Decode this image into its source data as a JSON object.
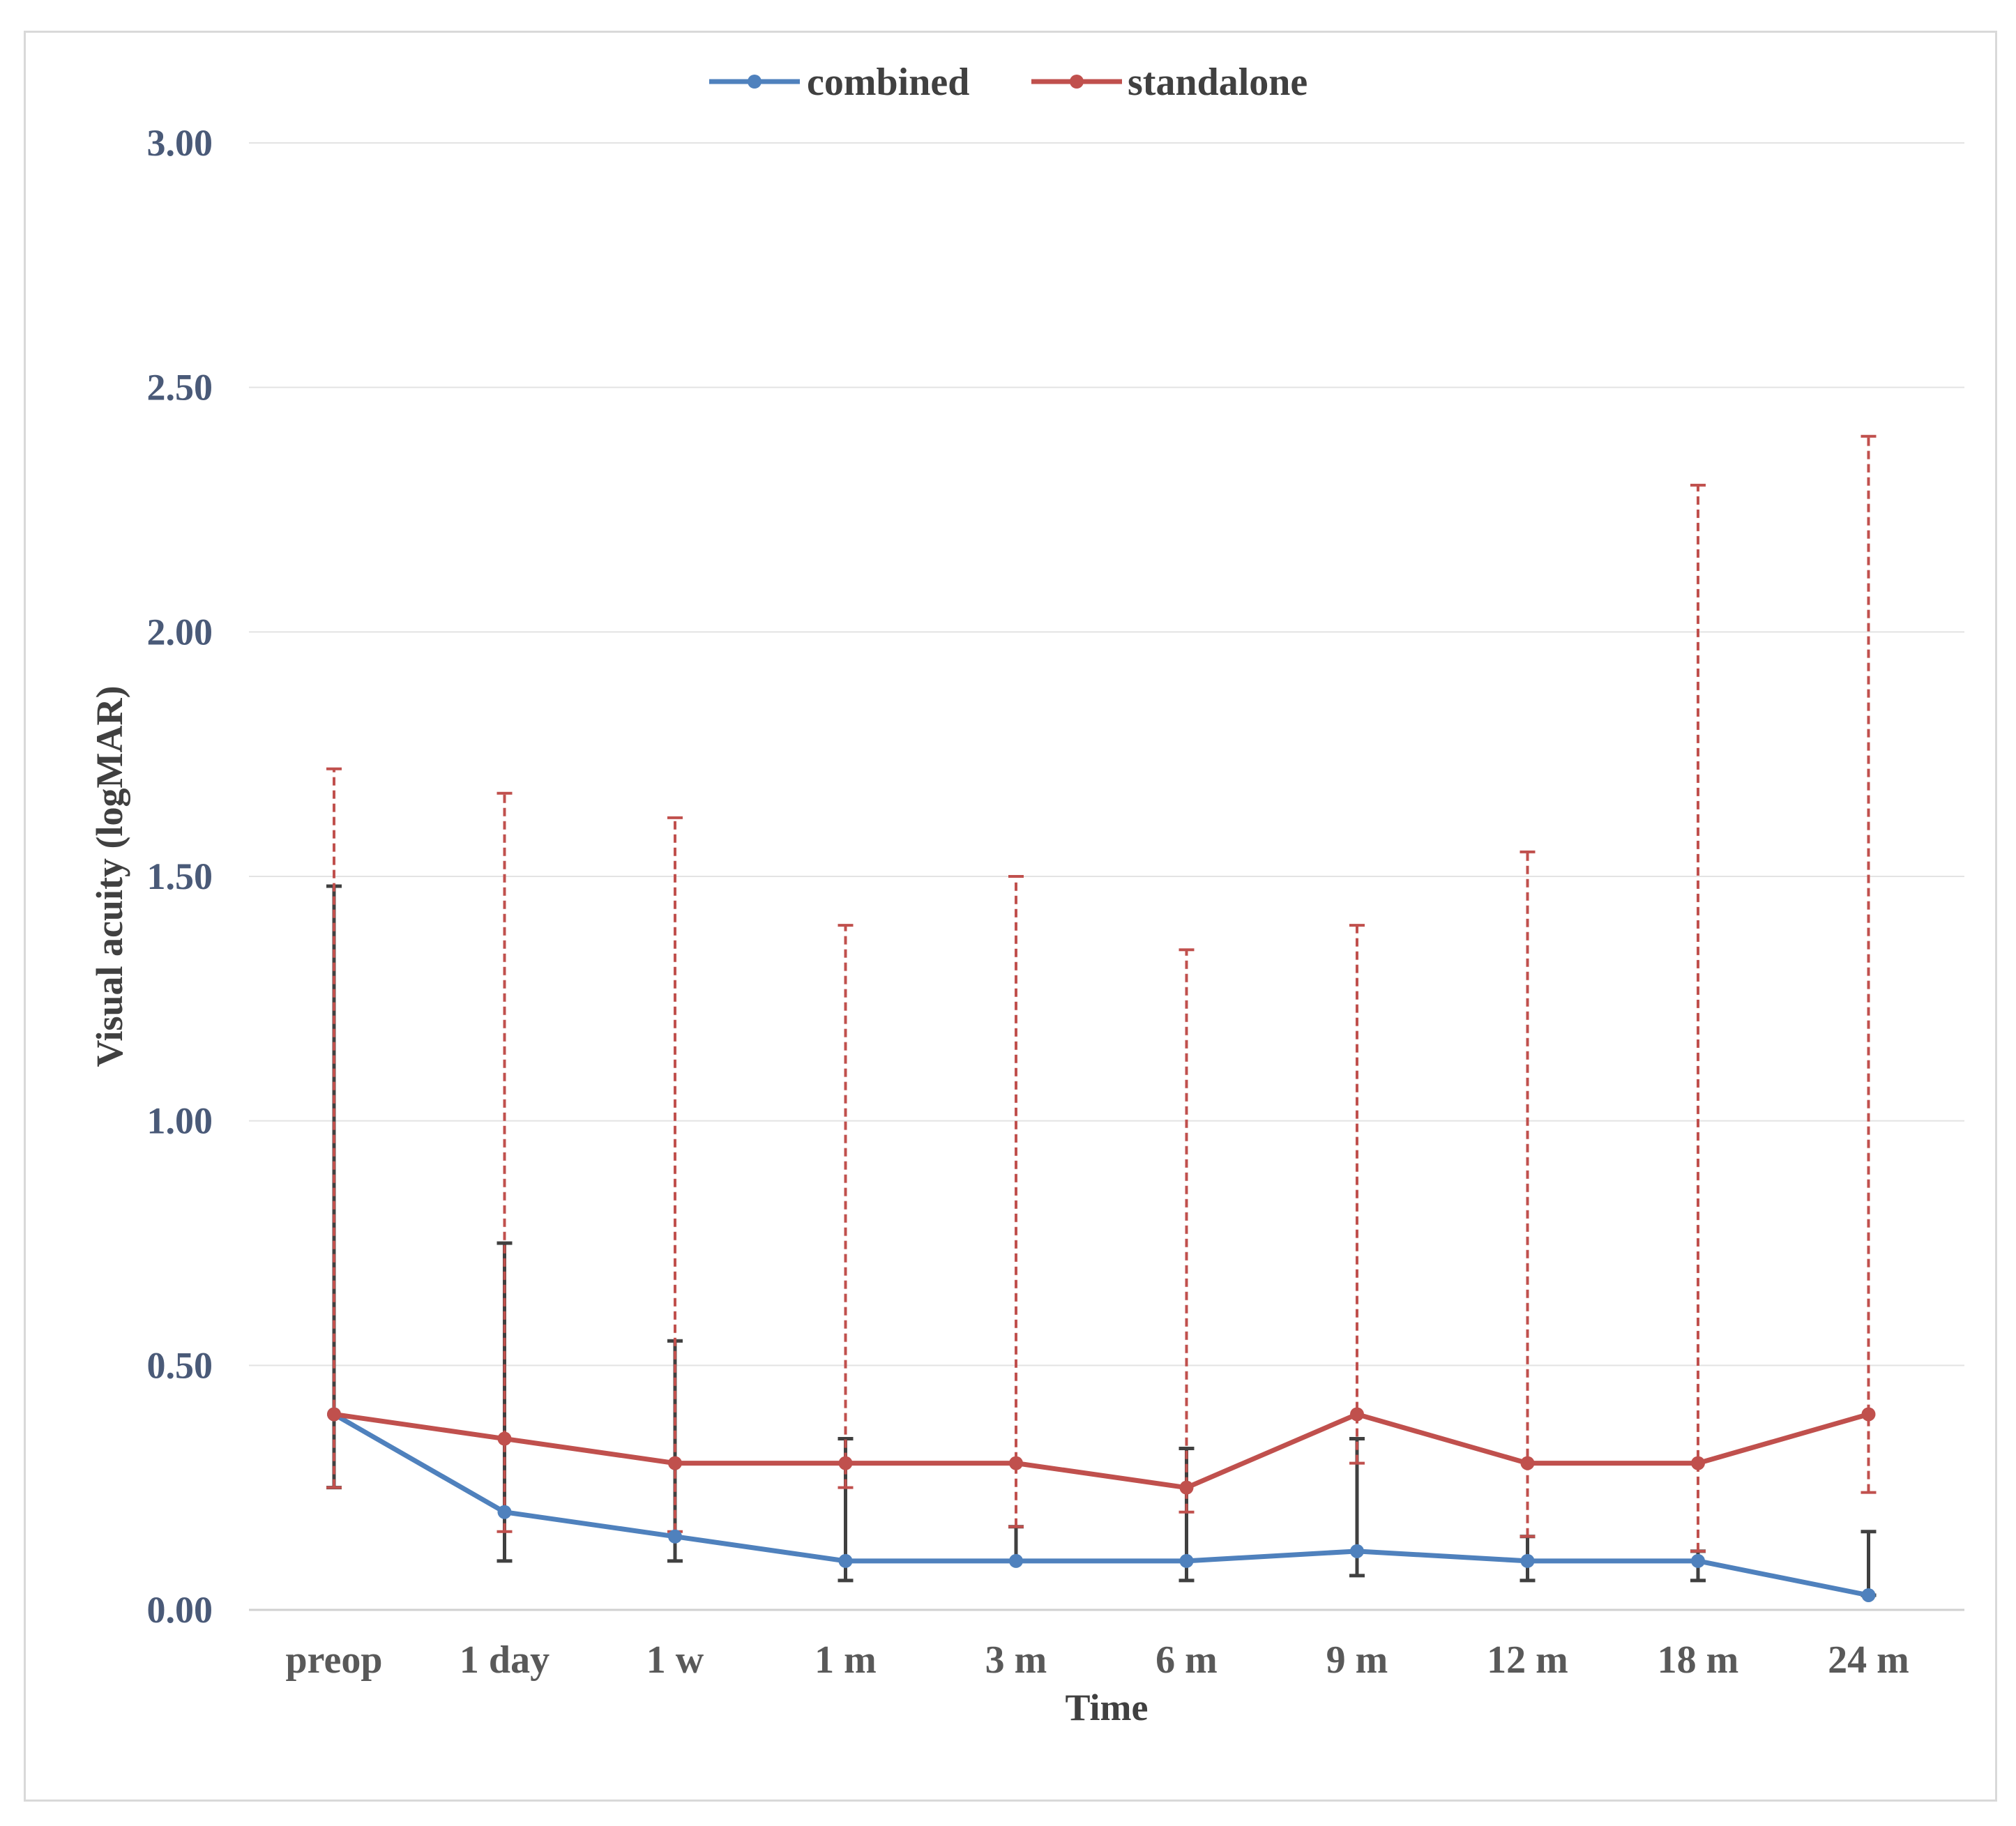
{
  "chart_data": {
    "type": "line",
    "title": "",
    "xlabel": "Time",
    "ylabel": "Visual acuity (logMAR)",
    "ylim": [
      0,
      3
    ],
    "yticks": [
      "0.00",
      "0.50",
      "1.00",
      "1.50",
      "2.00",
      "2.50",
      "3.00"
    ],
    "ytick_values": [
      0,
      0.5,
      1.0,
      1.5,
      2.0,
      2.5,
      3.0
    ],
    "grid": true,
    "legend_position": "top-center",
    "categories": [
      "preop",
      "1 day",
      "1 w",
      "1 m",
      "3 m",
      "6 m",
      "9 m",
      "12 m",
      "18 m",
      "24 m"
    ],
    "series": [
      {
        "name": "combined",
        "color": "#4f81bd",
        "error_bar_color": "#404040",
        "error_bar_style": "solid",
        "values": [
          0.4,
          0.2,
          0.15,
          0.1,
          0.1,
          0.1,
          0.12,
          0.1,
          0.1,
          0.03
        ],
        "error_low": [
          0.25,
          0.1,
          0.1,
          0.06,
          0.1,
          0.06,
          0.07,
          0.06,
          0.06,
          0.03
        ],
        "error_high": [
          1.48,
          0.75,
          0.55,
          0.35,
          0.17,
          0.33,
          0.35,
          0.15,
          0.12,
          0.16
        ]
      },
      {
        "name": "standalone",
        "color": "#c0504d",
        "error_bar_color": "#c0504d",
        "error_bar_style": "dashed",
        "values": [
          0.4,
          0.35,
          0.3,
          0.3,
          0.3,
          0.25,
          0.4,
          0.3,
          0.3,
          0.4
        ],
        "error_low": [
          0.25,
          0.16,
          0.16,
          0.25,
          0.17,
          0.2,
          0.3,
          0.15,
          0.12,
          0.24
        ],
        "error_high": [
          1.72,
          1.67,
          1.62,
          1.4,
          1.5,
          1.35,
          1.4,
          1.55,
          2.3,
          2.4
        ]
      }
    ]
  }
}
